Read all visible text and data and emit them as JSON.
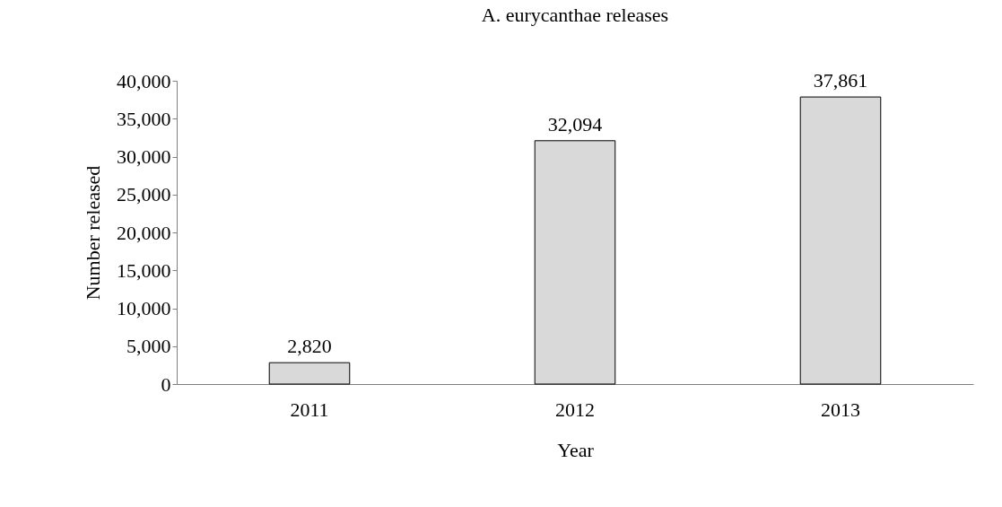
{
  "chart_data": {
    "type": "bar",
    "title": "A. eurycanthae releases",
    "xlabel": "Year",
    "ylabel": "Number released",
    "categories": [
      "2011",
      "2012",
      "2013"
    ],
    "values": [
      2820,
      32094,
      37861
    ],
    "color": "#d9d9d9",
    "ylim": [
      0,
      40000
    ],
    "yticks": [
      {
        "value": 0,
        "label": "0"
      },
      {
        "value": 5000,
        "label": "5,000"
      },
      {
        "value": 10000,
        "label": "10,000"
      },
      {
        "value": 15000,
        "label": "15,000"
      },
      {
        "value": 20000,
        "label": "20,000"
      },
      {
        "value": 25000,
        "label": "25,000"
      },
      {
        "value": 30000,
        "label": "30,000"
      },
      {
        "value": 35000,
        "label": "35,000"
      },
      {
        "value": 40000,
        "label": "40,000"
      }
    ],
    "value_labels": [
      "2,820",
      "32,094",
      "37,861"
    ],
    "grid": false
  }
}
